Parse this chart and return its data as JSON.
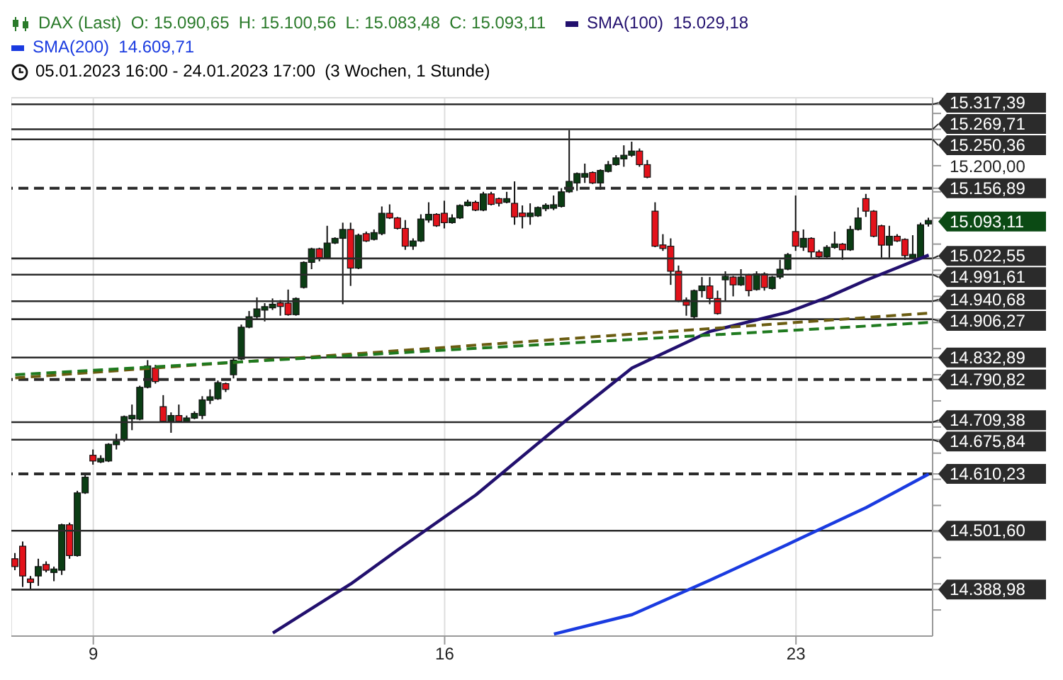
{
  "chart_data": {
    "type": "candlestick",
    "title": "DAX (Last)  O: 15.090,65  H: 15.100,56  L: 15.083,48  C: 15.093,11",
    "subtitle": "05.01.2023 16:00 - 24.01.2023 17:00  (3 Wochen, 1 Stunde)",
    "categories": [
      null,
      null,
      null,
      null,
      null,
      null,
      null,
      null,
      null,
      null,
      "9",
      null,
      null,
      null,
      null,
      null,
      null,
      null,
      null,
      null,
      null,
      null,
      null,
      null,
      null,
      null,
      null,
      null,
      null,
      null,
      null,
      null,
      null,
      null,
      null,
      null,
      null,
      null,
      null,
      null,
      null,
      null,
      null,
      null,
      null,
      null,
      null,
      null,
      null,
      null,
      null,
      null,
      null,
      null,
      null,
      "16",
      null,
      null,
      null,
      null,
      null,
      null,
      null,
      null,
      null,
      null,
      null,
      null,
      null,
      null,
      null,
      null,
      null,
      null,
      null,
      null,
      null,
      null,
      null,
      null,
      null,
      null,
      null,
      null,
      null,
      null,
      null,
      null,
      null,
      null,
      null,
      null,
      null,
      null,
      null,
      null,
      null,
      null,
      null,
      null,
      "23",
      null,
      null,
      null,
      null,
      null,
      null,
      null,
      null,
      null,
      null,
      null,
      null,
      null,
      null,
      null,
      null,
      null
    ],
    "ohlc": [
      [
        14448,
        14459,
        14426,
        14433
      ],
      [
        14472,
        14481,
        14394,
        14415
      ],
      [
        14407,
        14415,
        14389,
        14405
      ],
      [
        14415,
        14448,
        14396,
        14433
      ],
      [
        14437,
        14443,
        14422,
        14426
      ],
      [
        14424,
        14433,
        14405,
        14426
      ],
      [
        14426,
        14515,
        14417,
        14513
      ],
      [
        14513,
        14517,
        14448,
        14454
      ],
      [
        14454,
        14578,
        14452,
        14574
      ],
      [
        14574,
        14609,
        14572,
        14604
      ],
      [
        14646,
        14657,
        14628,
        14635
      ],
      [
        14636,
        14646,
        14631,
        14637
      ],
      [
        14635,
        14669,
        14633,
        14667
      ],
      [
        14667,
        14687,
        14657,
        14672
      ],
      [
        14676,
        14722,
        14672,
        14720
      ],
      [
        14718,
        14743,
        14694,
        14720
      ],
      [
        14715,
        14779,
        14713,
        14776
      ],
      [
        14776,
        14828,
        14774,
        14817
      ],
      [
        14813,
        14819,
        14783,
        14787
      ],
      [
        14739,
        14761,
        14709,
        14711
      ],
      [
        14711,
        14728,
        14689,
        14722
      ],
      [
        14722,
        14743,
        14709,
        14711
      ],
      [
        14711,
        14722,
        14709,
        14717
      ],
      [
        14717,
        14730,
        14715,
        14726
      ],
      [
        14722,
        14759,
        14715,
        14752
      ],
      [
        14752,
        14772,
        14744,
        14757
      ],
      [
        14754,
        14789,
        14752,
        14785
      ],
      [
        14783,
        14785,
        14767,
        14772
      ],
      [
        14800,
        14833,
        14793,
        14828
      ],
      [
        14830,
        14896,
        14828,
        14891
      ],
      [
        14891,
        14922,
        14889,
        14911
      ],
      [
        14911,
        14948,
        14906,
        14926
      ],
      [
        14926,
        14937,
        14902,
        14928
      ],
      [
        14928,
        14946,
        14924,
        14935
      ],
      [
        14935,
        14943,
        14913,
        14933
      ],
      [
        14937,
        14963,
        14913,
        14915
      ],
      [
        14915,
        14948,
        14913,
        14946
      ],
      [
        14967,
        15017,
        14965,
        15015
      ],
      [
        15015,
        15043,
        15002,
        15041
      ],
      [
        15041,
        15043,
        15017,
        15024
      ],
      [
        15024,
        15085,
        15022,
        15052
      ],
      [
        15052,
        15063,
        15050,
        15061
      ],
      [
        15061,
        15091,
        14935,
        15078
      ],
      [
        15078,
        15091,
        14970,
        15004
      ],
      [
        15004,
        15070,
        15002,
        15067
      ],
      [
        15070,
        15074,
        15054,
        15056
      ],
      [
        15059,
        15078,
        15057,
        15072
      ],
      [
        15070,
        15122,
        15067,
        15109
      ],
      [
        15109,
        15126,
        15098,
        15100
      ],
      [
        15100,
        15102,
        15078,
        15080
      ],
      [
        15080,
        15096,
        15039,
        15046
      ],
      [
        15046,
        15061,
        15039,
        15056
      ],
      [
        15056,
        15107,
        15054,
        15098
      ],
      [
        15096,
        15130,
        15091,
        15107
      ],
      [
        15107,
        15109,
        15083,
        15085
      ],
      [
        15109,
        15133,
        15080,
        15091
      ],
      [
        15091,
        15107,
        15089,
        15100
      ],
      [
        15100,
        15126,
        15098,
        15124
      ],
      [
        15124,
        15135,
        15122,
        15130
      ],
      [
        15130,
        15133,
        15113,
        15115
      ],
      [
        15115,
        15150,
        15113,
        15146
      ],
      [
        15146,
        15150,
        15124,
        15126
      ],
      [
        15137,
        15139,
        15122,
        15128
      ],
      [
        15130,
        15150,
        15128,
        15137
      ],
      [
        15128,
        15170,
        15087,
        15102
      ],
      [
        15107,
        15124,
        15080,
        15105
      ],
      [
        15105,
        15128,
        15087,
        15107
      ],
      [
        15104,
        15122,
        15102,
        15120
      ],
      [
        15120,
        15128,
        15113,
        15122
      ],
      [
        15120,
        15143,
        15115,
        15124
      ],
      [
        15122,
        15157,
        15120,
        15150
      ],
      [
        15150,
        15268,
        15148,
        15170
      ],
      [
        15167,
        15187,
        15152,
        15185
      ],
      [
        15178,
        15204,
        15167,
        15185
      ],
      [
        15187,
        15189,
        15165,
        15167
      ],
      [
        15167,
        15193,
        15154,
        15191
      ],
      [
        15189,
        15209,
        15187,
        15202
      ],
      [
        15202,
        15220,
        15200,
        15215
      ],
      [
        15213,
        15239,
        15198,
        15220
      ],
      [
        15220,
        15246,
        15217,
        15228
      ],
      [
        15228,
        15233,
        15198,
        15202
      ],
      [
        15202,
        15211,
        15176,
        15178
      ],
      [
        15113,
        15130,
        15044,
        15046
      ],
      [
        15046,
        15069,
        15037,
        15044
      ],
      [
        15046,
        15061,
        14972,
        14998
      ],
      [
        14998,
        15009,
        14939,
        14941
      ],
      [
        14943,
        14948,
        14913,
        14933
      ],
      [
        14911,
        14963,
        14905,
        14961
      ],
      [
        14961,
        14987,
        14948,
        14970
      ],
      [
        14970,
        14987,
        14935,
        14946
      ],
      [
        14946,
        14961,
        14915,
        14917
      ],
      [
        14983,
        14998,
        14941,
        14987
      ],
      [
        14987,
        14989,
        14950,
        14972
      ],
      [
        14972,
        15002,
        14970,
        14987
      ],
      [
        14991,
        14993,
        14950,
        14961
      ],
      [
        14963,
        14998,
        14961,
        14993
      ],
      [
        14993,
        14996,
        14961,
        14967
      ],
      [
        14965,
        14989,
        14963,
        14987
      ],
      [
        14987,
        15020,
        14983,
        15002
      ],
      [
        15002,
        15033,
        15000,
        15030
      ],
      [
        15074,
        15143,
        15037,
        15046
      ],
      [
        15044,
        15078,
        15037,
        15061
      ],
      [
        15061,
        15063,
        15024,
        15035
      ],
      [
        15035,
        15039,
        15024,
        15026
      ],
      [
        15026,
        15048,
        15024,
        15044
      ],
      [
        15044,
        15074,
        15041,
        15050
      ],
      [
        15050,
        15052,
        15020,
        15039
      ],
      [
        15039,
        15085,
        15037,
        15078
      ],
      [
        15078,
        15120,
        15076,
        15100
      ],
      [
        15137,
        15146,
        15102,
        15113
      ],
      [
        15113,
        15115,
        15063,
        15065
      ],
      [
        15085,
        15087,
        15024,
        15048
      ],
      [
        15048,
        15085,
        15024,
        15065
      ],
      [
        15065,
        15069,
        15054,
        15056
      ],
      [
        15059,
        15061,
        15020,
        15028
      ],
      [
        15026,
        15067,
        15024,
        15028
      ],
      [
        15024,
        15091,
        15022,
        15087
      ],
      [
        15090.65,
        15100.56,
        15083.48,
        15093.11
      ]
    ],
    "series": [
      {
        "type": "line",
        "name": "SMA(100)  15.029,18",
        "color": "#22106e",
        "values": [
          null,
          null,
          null,
          null,
          null,
          null,
          null,
          null,
          null,
          null,
          null,
          null,
          null,
          null,
          null,
          null,
          null,
          null,
          null,
          null,
          null,
          null,
          null,
          null,
          null,
          null,
          null,
          null,
          null,
          null,
          null,
          null,
          null,
          14306,
          null,
          null,
          null,
          null,
          null,
          null,
          14372,
          null,
          null,
          14400,
          null,
          null,
          null,
          null,
          null,
          14465,
          null,
          null,
          null,
          null,
          null,
          null,
          null,
          null,
          null,
          14570,
          null,
          null,
          null,
          null,
          null,
          null,
          null,
          null,
          null,
          14694,
          null,
          null,
          null,
          null,
          null,
          null,
          null,
          null,
          null,
          14813,
          null,
          null,
          null,
          null,
          null,
          null,
          null,
          null,
          null,
          14883,
          null,
          null,
          null,
          null,
          null,
          null,
          null,
          null,
          null,
          14920,
          null,
          null,
          null,
          null,
          14948,
          null,
          null,
          null,
          null,
          14981,
          null,
          null,
          null,
          null,
          null,
          null,
          null,
          15029
        ]
      },
      {
        "type": "line",
        "name": "SMA(200)  14.609,71",
        "color": "#1a3be0",
        "values": [
          null,
          null,
          null,
          null,
          null,
          null,
          null,
          null,
          null,
          null,
          null,
          null,
          null,
          null,
          null,
          null,
          null,
          null,
          null,
          null,
          null,
          null,
          null,
          null,
          null,
          null,
          null,
          null,
          null,
          null,
          null,
          null,
          null,
          null,
          null,
          null,
          null,
          null,
          null,
          null,
          null,
          null,
          null,
          null,
          null,
          null,
          null,
          null,
          null,
          null,
          null,
          null,
          null,
          null,
          null,
          null,
          null,
          null,
          null,
          null,
          null,
          null,
          null,
          null,
          null,
          null,
          null,
          null,
          null,
          14304,
          null,
          null,
          null,
          null,
          null,
          null,
          null,
          null,
          null,
          14341,
          null,
          null,
          null,
          null,
          null,
          null,
          null,
          null,
          null,
          14407,
          null,
          null,
          null,
          null,
          null,
          null,
          null,
          null,
          null,
          14476,
          null,
          null,
          null,
          null,
          null,
          null,
          null,
          null,
          null,
          14546,
          null,
          null,
          null,
          null,
          null,
          null,
          null,
          14610
        ]
      },
      {
        "type": "line",
        "color": "#6b5d12",
        "line_style": "dashed",
        "values": [
          14794,
          null,
          null,
          null,
          null,
          null,
          null,
          null,
          null,
          null,
          null,
          null,
          null,
          null,
          null,
          null,
          null,
          null,
          null,
          null,
          null,
          null,
          null,
          null,
          null,
          null,
          null,
          null,
          null,
          null,
          null,
          null,
          null,
          null,
          null,
          null,
          null,
          null,
          null,
          null,
          null,
          null,
          null,
          null,
          null,
          null,
          null,
          null,
          null,
          null,
          null,
          null,
          null,
          null,
          null,
          null,
          null,
          null,
          null,
          null,
          null,
          null,
          null,
          null,
          null,
          null,
          null,
          null,
          null,
          null,
          null,
          null,
          null,
          null,
          null,
          null,
          null,
          null,
          null,
          null,
          null,
          null,
          null,
          null,
          null,
          null,
          null,
          null,
          null,
          null,
          null,
          null,
          null,
          null,
          null,
          null,
          null,
          null,
          null,
          null,
          null,
          null,
          null,
          null,
          null,
          null,
          null,
          null,
          null,
          null,
          null,
          null,
          null,
          null,
          null,
          null,
          null,
          14918
        ]
      },
      {
        "type": "line",
        "color": "#1f7a1f",
        "line_style": "dashed",
        "values": [
          14800,
          null,
          null,
          null,
          null,
          null,
          null,
          null,
          null,
          null,
          null,
          null,
          null,
          null,
          null,
          null,
          null,
          null,
          null,
          null,
          null,
          null,
          null,
          null,
          null,
          null,
          null,
          null,
          null,
          null,
          null,
          null,
          null,
          null,
          null,
          null,
          null,
          null,
          null,
          null,
          null,
          null,
          null,
          null,
          null,
          null,
          null,
          null,
          null,
          null,
          null,
          null,
          null,
          null,
          null,
          null,
          null,
          null,
          null,
          null,
          null,
          null,
          null,
          null,
          null,
          null,
          null,
          null,
          null,
          null,
          null,
          null,
          null,
          null,
          null,
          null,
          null,
          null,
          null,
          null,
          null,
          null,
          null,
          null,
          null,
          null,
          null,
          null,
          null,
          null,
          null,
          null,
          null,
          null,
          null,
          null,
          null,
          null,
          null,
          null,
          null,
          null,
          null,
          null,
          null,
          null,
          null,
          null,
          null,
          null,
          null,
          null,
          null,
          null,
          null,
          null,
          null,
          14900
        ]
      }
    ],
    "ylim": [
      14300,
      15330
    ],
    "yticks": [
      {
        "value": 14350,
        "label": null
      },
      {
        "value": 14400,
        "label": null
      },
      {
        "value": 14450,
        "label": null
      },
      {
        "value": 14500,
        "label": null
      },
      {
        "value": 14550,
        "label": null
      },
      {
        "value": 14600,
        "label": null
      },
      {
        "value": 14650,
        "label": null
      },
      {
        "value": 14700,
        "label": null
      },
      {
        "value": 14750,
        "label": null
      },
      {
        "value": 14800,
        "label": null
      },
      {
        "value": 14850,
        "label": null
      },
      {
        "value": 14900,
        "label": null
      },
      {
        "value": 14950,
        "label": null
      },
      {
        "value": 15000,
        "label": null
      },
      {
        "value": 15050,
        "label": null
      },
      {
        "value": 15100,
        "label": null
      },
      {
        "value": 15150,
        "label": null
      },
      {
        "value": 15200,
        "label": "15.200,00"
      },
      {
        "value": 15250,
        "label": null
      },
      {
        "value": 15300,
        "label": null
      },
      {
        "value": 15317.39,
        "label": "15.317,39"
      },
      {
        "value": 15269.71,
        "label": "15.269,71"
      },
      {
        "value": 15250.36,
        "label": "15.250,36"
      },
      {
        "value": 15156.89,
        "label": "15.156,89"
      },
      {
        "value": 15022.55,
        "label": "15.022,55"
      },
      {
        "value": 14991.61,
        "label": "14.991,61"
      },
      {
        "value": 14940.68,
        "label": "14.940,68"
      },
      {
        "value": 14906.27,
        "label": "14.906,27"
      },
      {
        "value": 14832.89,
        "label": "14.832,89"
      },
      {
        "value": 14790.82,
        "label": "14.790,82"
      },
      {
        "value": 14709.38,
        "label": "14.709,38"
      },
      {
        "value": 14675.84,
        "label": "14.675,84"
      },
      {
        "value": 14610.23,
        "label": "14.610,23"
      },
      {
        "value": 14501.6,
        "label": "14.501,60"
      },
      {
        "value": 14388.98,
        "label": "14.388,98"
      }
    ],
    "ref_lines": [
      {
        "axis": "y",
        "value": 15317.39,
        "line_style": "solid"
      },
      {
        "axis": "y",
        "value": 15269.71,
        "line_style": "solid"
      },
      {
        "axis": "y",
        "value": 15250.36,
        "line_style": "solid"
      },
      {
        "axis": "y",
        "value": 15156.89,
        "line_style": "dashed"
      },
      {
        "axis": "y",
        "value": 15022.55,
        "line_style": "solid"
      },
      {
        "axis": "y",
        "value": 14991.61,
        "line_style": "solid"
      },
      {
        "axis": "y",
        "value": 14940.68,
        "line_style": "solid"
      },
      {
        "axis": "y",
        "value": 14906.27,
        "line_style": "solid"
      },
      {
        "axis": "y",
        "value": 14832.89,
        "line_style": "solid"
      },
      {
        "axis": "y",
        "value": 14790.82,
        "line_style": "dashed"
      },
      {
        "axis": "y",
        "value": 14709.38,
        "line_style": "solid"
      },
      {
        "axis": "y",
        "value": 14675.84,
        "line_style": "solid"
      },
      {
        "axis": "y",
        "value": 14610.23,
        "line_style": "dashed"
      },
      {
        "axis": "y",
        "value": 14501.6,
        "line_style": "solid"
      },
      {
        "axis": "y",
        "value": 14388.98,
        "line_style": "solid"
      }
    ],
    "annotations": [
      "15.093,11"
    ],
    "grid": true,
    "legend": "top left"
  }
}
